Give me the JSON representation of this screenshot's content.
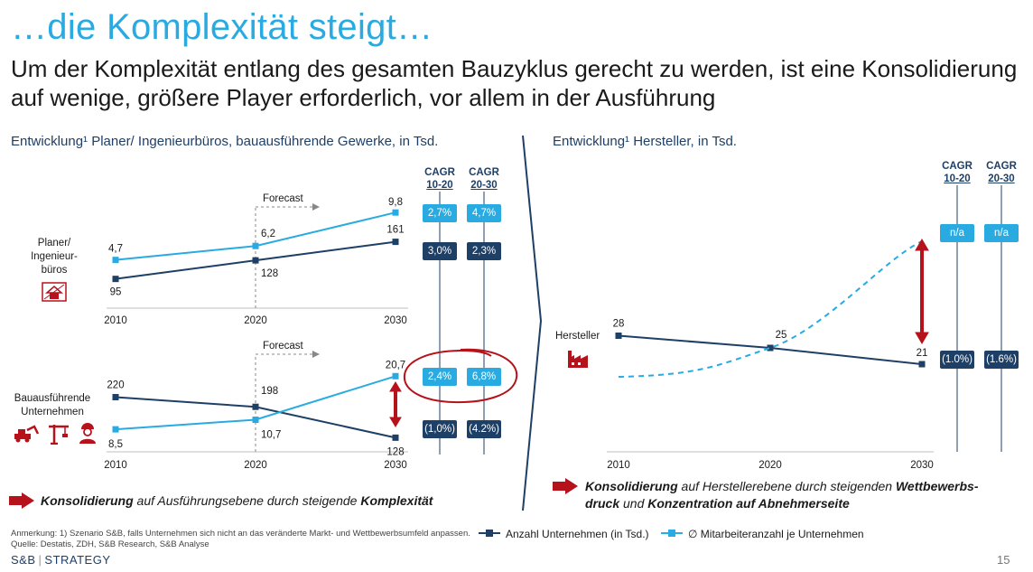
{
  "title": "…die Komplexität steigt…",
  "subtitle": "Um der Komplexität entlang des gesamten Bauzyklus gerecht zu werden, ist eine Konsolidierung auf wenige, größere Player erforderlich, vor allem in der Ausführung",
  "left_section_title": "Entwicklung¹ Planer/ Ingenieurbüros, bauausführende Gewerke, in Tsd.",
  "right_section_title": "Entwicklung¹ Hersteller, in Tsd.",
  "cagr_headers": {
    "label": "CAGR",
    "col1": "10-20",
    "col2": "20-30"
  },
  "colors": {
    "dark": "#1e3f66",
    "light": "#29abe2",
    "red": "#b5121b"
  },
  "chart_data": [
    {
      "type": "line",
      "category_label": "Planer/ Ingenieur-büros",
      "x": [
        2010,
        2020,
        2030
      ],
      "forecast_label": "Forecast",
      "series": [
        {
          "name": "Anzahl Unternehmen (in Tsd.)",
          "values": [
            95,
            128,
            161
          ],
          "labels": [
            "95",
            "128",
            "161"
          ],
          "color": "#1e3f66"
        },
        {
          "name": "∅ Mitarbeiteranzahl je Unternehmen",
          "values": [
            4.7,
            6.2,
            9.8
          ],
          "labels": [
            "4,7",
            "6,2",
            "9,8"
          ],
          "color": "#29abe2"
        }
      ],
      "cagr": {
        "light": [
          "2,7%",
          "4,7%"
        ],
        "dark": [
          "3,0%",
          "2,3%"
        ]
      },
      "icon": "architect-house-icon"
    },
    {
      "type": "line",
      "category_label": "Bauausführende Unternehmen",
      "x": [
        2010,
        2020,
        2030
      ],
      "forecast_label": "Forecast",
      "series": [
        {
          "name": "Anzahl Unternehmen (in Tsd.)",
          "values": [
            220,
            198,
            128
          ],
          "labels": [
            "220",
            "198",
            "128"
          ],
          "color": "#1e3f66"
        },
        {
          "name": "∅ Mitarbeiteranzahl je Unternehmen",
          "values": [
            8.5,
            10.7,
            20.7
          ],
          "labels": [
            "8,5",
            "10,7",
            "20,7"
          ],
          "color": "#29abe2"
        }
      ],
      "cagr": {
        "light": [
          "2,4%",
          "6,8%"
        ],
        "dark": [
          "(1,0%)",
          "(4.2%)"
        ]
      },
      "icons": [
        "excavator-icon",
        "crane-icon",
        "worker-icon"
      ]
    },
    {
      "type": "line",
      "category_label": "Hersteller",
      "x": [
        2010,
        2020,
        2030
      ],
      "series": [
        {
          "name": "Anzahl Unternehmen (in Tsd.)",
          "values": [
            28,
            25,
            21
          ],
          "labels": [
            "28",
            "25",
            "21"
          ],
          "color": "#1e3f66"
        },
        {
          "name": "∅ Mitarbeiteranzahl je Unternehmen",
          "values": [
            null,
            25,
            null
          ],
          "labels": [],
          "color": "#29abe2",
          "style": "dashed"
        }
      ],
      "cagr": {
        "light": [
          "n/a",
          "n/a"
        ],
        "dark": [
          "(1.0%)",
          "(1.6%)"
        ]
      },
      "icon": "factory-icon"
    }
  ],
  "takeaway_left": {
    "b1": "Konsolidierung",
    "t1": " auf Ausführungsebene durch steigende ",
    "b2": "Komplexität"
  },
  "takeaway_right": {
    "b1": "Konsolidierung",
    "t1": " auf Herstellerebene durch steigenden ",
    "b2": "Wettbewerbs-druck",
    "t2": " und ",
    "b3": "Konzentration auf Abnehmerseite"
  },
  "footnote": "Anmerkung: 1) Szenario S&B, falls Unternehmen sich nicht an das veränderte Markt- und Wettbewerbsumfeld anpassen.",
  "source": "Quelle: Destatis, ZDH, S&B Research, S&B Analyse",
  "legend": {
    "dark": "Anzahl Unternehmen (in Tsd.)",
    "light": "∅  Mitarbeiteranzahl je Unternehmen"
  },
  "brand": {
    "left": "S&B",
    "right": "STRATEGY"
  },
  "page_number": "15"
}
